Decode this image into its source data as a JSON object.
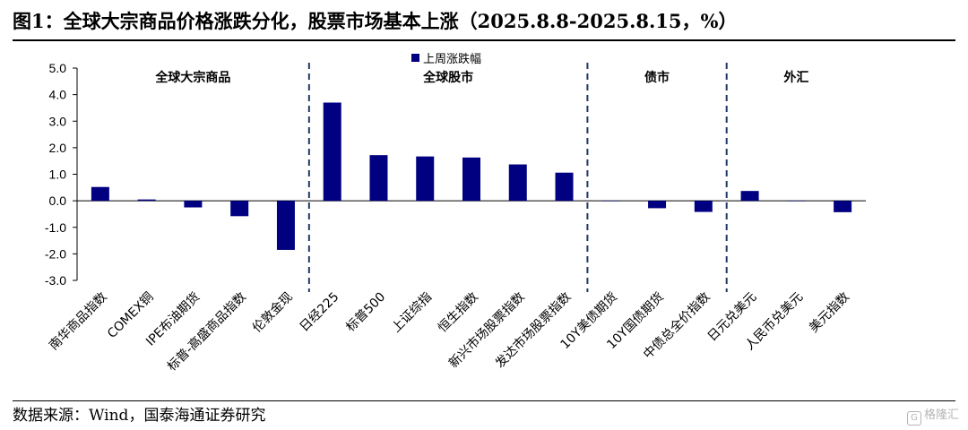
{
  "title": "图1：全球大宗商品价格涨跌分化，股票市场基本上涨（2025.8.8-2025.8.15，%）",
  "source": "数据来源：Wind，国泰海通证券研究",
  "watermark": "格隆汇",
  "colors": {
    "bar": "#000080",
    "axis": "#000000",
    "divider": "#1f3864"
  },
  "chart_data": {
    "type": "bar",
    "ylim": [
      -3.0,
      5.0
    ],
    "yticks": [
      "5.0",
      "4.0",
      "3.0",
      "2.0",
      "1.0",
      "0.0",
      "-1.0",
      "-2.0",
      "-3.0"
    ],
    "ytick_values": [
      5,
      4,
      3,
      2,
      1,
      0,
      -1,
      -2,
      -3
    ],
    "categories": [
      "南华商品指数",
      "COMEX铜",
      "IPE布油期货",
      "标普-高盛商品指数",
      "伦敦金现",
      "日经225",
      "标普500",
      "上证综指",
      "恒生指数",
      "新兴市场股票指数",
      "发达市场股票指数",
      "10Y美债期货",
      "10Y国债期货",
      "中债总全价指数",
      "日元兑美元",
      "人民币兑美元",
      "美元指数"
    ],
    "series": [
      {
        "name": "上周涨跌幅",
        "values": [
          0.52,
          0.05,
          -0.25,
          -0.58,
          -1.85,
          3.7,
          1.72,
          1.67,
          1.63,
          1.37,
          1.06,
          0.0,
          -0.28,
          -0.42,
          0.37,
          0.0,
          -0.43
        ]
      }
    ],
    "groups": [
      {
        "label": "全球大宗商品",
        "start": 0,
        "end": 4
      },
      {
        "label": "全球股市",
        "start": 5,
        "end": 10
      },
      {
        "label": "债市",
        "start": 11,
        "end": 13
      },
      {
        "label": "外汇",
        "start": 14,
        "end": 16
      }
    ],
    "legend": "top-center"
  }
}
